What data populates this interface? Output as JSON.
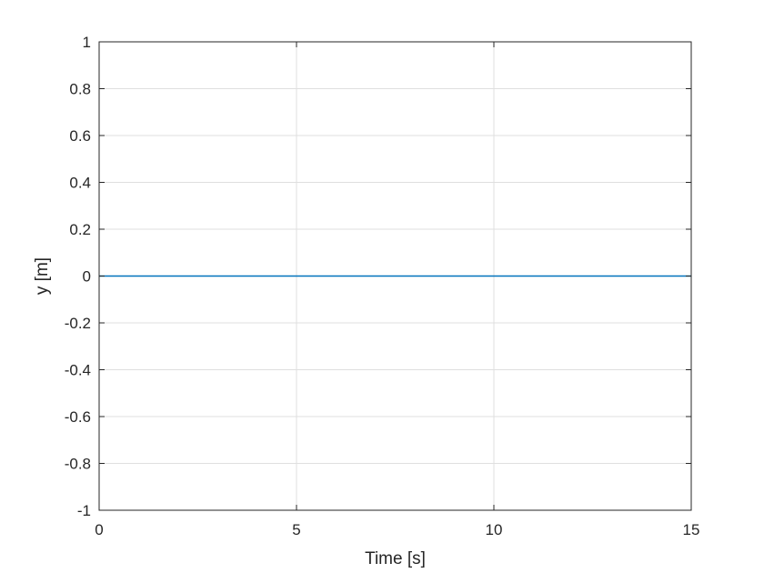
{
  "chart_data": {
    "type": "line",
    "xlabel": "Time [s]",
    "ylabel": "y [m]",
    "xlim": [
      0,
      15
    ],
    "ylim": [
      -1,
      1
    ],
    "grid": true,
    "x_ticks": [
      0,
      5,
      10,
      15
    ],
    "x_tick_labels": [
      "0",
      "5",
      "10",
      "15"
    ],
    "y_ticks": [
      -1,
      -0.8,
      -0.6,
      -0.4,
      -0.2,
      0,
      0.2,
      0.4,
      0.6,
      0.8,
      1
    ],
    "y_tick_labels": [
      "-1",
      "-0.8",
      "-0.6",
      "-0.4",
      "-0.2",
      "0",
      "0.2",
      "0.4",
      "0.6",
      "0.8",
      "1"
    ],
    "series": [
      {
        "color": "#0072bd",
        "x": [
          0,
          15
        ],
        "y": [
          0,
          0
        ]
      }
    ]
  }
}
